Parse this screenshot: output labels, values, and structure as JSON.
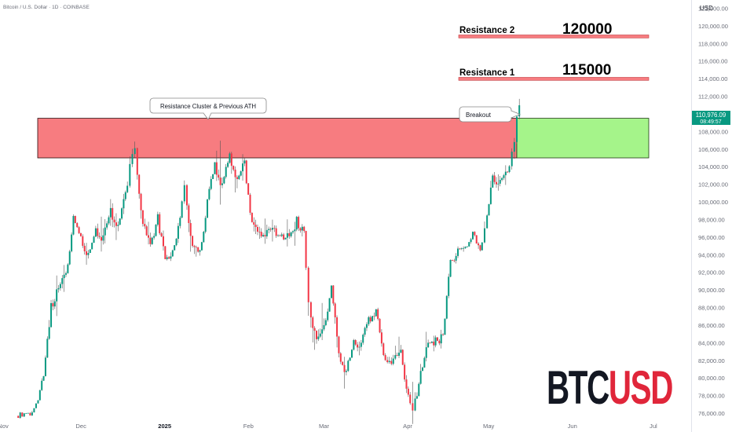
{
  "header": {
    "symbol_line": "Bitcoin / U.S. Dollar · 1D · COINBASE"
  },
  "axis": {
    "currency": "USD"
  },
  "watermark": {
    "part1": "BTC",
    "part2": "USD",
    "color1": "#131722",
    "color2": "#e0263a"
  },
  "price_tag": {
    "price": "110,976.09",
    "countdown": "08:49:57",
    "color": "#089981"
  },
  "annotations": {
    "cluster_label": "Resistance Cluster & Previous ATH",
    "breakout_label": "Breakout",
    "resistance1_label": "Resistance 1",
    "resistance1_value": "115000",
    "resistance2_label": "Resistance 2",
    "resistance2_value": "120000"
  },
  "colors": {
    "up": "#089981",
    "down": "#f23645",
    "zone_red": "#f77c80",
    "zone_green": "#a5f48a",
    "line_red": "#f77c80"
  },
  "chart_data": {
    "type": "candlestick",
    "y_ticks": [
      "76,000.00",
      "78,000.00",
      "80,000.00",
      "82,000.00",
      "84,000.00",
      "86,000.00",
      "88,000.00",
      "90,000.00",
      "92,000.00",
      "94,000.00",
      "96,000.00",
      "98,000.00",
      "100,000.00",
      "102,000.00",
      "104,000.00",
      "106,000.00",
      "108,000.00",
      "110,000.00",
      "112,000.00",
      "114,000.00",
      "116,000.00",
      "118,000.00",
      "120,000.00",
      "122,000.00"
    ],
    "y_tick_values": [
      76000,
      78000,
      80000,
      82000,
      84000,
      86000,
      88000,
      90000,
      92000,
      94000,
      96000,
      98000,
      100000,
      102000,
      104000,
      106000,
      108000,
      110000,
      112000,
      114000,
      116000,
      118000,
      120000,
      122000
    ],
    "ylim": [
      75000,
      124000
    ],
    "x_ticks": [
      "Nov",
      "Dec",
      "2025",
      "Feb",
      "Mar",
      "Apr",
      "May",
      "Jun",
      "Jul"
    ],
    "x_tick_dates": [
      "2024-11-01",
      "2024-12-01",
      "2025-01-01",
      "2025-02-01",
      "2025-03-01",
      "2025-04-01",
      "2025-05-01",
      "2025-06-01",
      "2025-07-01"
    ],
    "xlim": [
      "2024-11-01",
      "2025-07-15"
    ],
    "zones": [
      {
        "name": "resistance cluster",
        "from": "2024-11-01",
        "to": "2025-05-22",
        "low": 105000,
        "high": 109500,
        "color": "#f77c80"
      },
      {
        "name": "target zone",
        "from": "2025-05-22",
        "to": "2025-07-15",
        "low": 105000,
        "high": 109500,
        "color": "#a5f48a"
      }
    ],
    "levels": [
      {
        "name": "Resistance 1",
        "price": 115000
      },
      {
        "name": "Resistance 2",
        "price": 120000
      }
    ],
    "candles": [
      {
        "t": "2024-11-01",
        "o": 75700,
        "h": 76200,
        "l": 75400,
        "c": 76000
      },
      {
        "t": "2024-11-05",
        "o": 76000,
        "h": 77500,
        "l": 75900,
        "c": 77100
      },
      {
        "t": "2024-11-09",
        "o": 77100,
        "h": 80500,
        "l": 77000,
        "c": 80200
      },
      {
        "t": "2024-11-12",
        "o": 80200,
        "h": 89900,
        "l": 80000,
        "c": 88500
      },
      {
        "t": "2024-11-15",
        "o": 88500,
        "h": 91800,
        "l": 86800,
        "c": 90200
      },
      {
        "t": "2024-11-18",
        "o": 90200,
        "h": 93100,
        "l": 88500,
        "c": 91900
      },
      {
        "t": "2024-11-21",
        "o": 91900,
        "h": 99200,
        "l": 91500,
        "c": 98400
      },
      {
        "t": "2024-11-24",
        "o": 98400,
        "h": 99500,
        "l": 95300,
        "c": 96100
      },
      {
        "t": "2024-11-27",
        "o": 96100,
        "h": 97500,
        "l": 92600,
        "c": 94200
      },
      {
        "t": "2024-11-30",
        "o": 94200,
        "h": 98600,
        "l": 94000,
        "c": 97000
      },
      {
        "t": "2024-12-03",
        "o": 97000,
        "h": 99800,
        "l": 94700,
        "c": 96200
      },
      {
        "t": "2024-12-06",
        "o": 96200,
        "h": 103900,
        "l": 91800,
        "c": 99300
      },
      {
        "t": "2024-12-09",
        "o": 99300,
        "h": 101300,
        "l": 94300,
        "c": 97400
      },
      {
        "t": "2024-12-12",
        "o": 97400,
        "h": 101900,
        "l": 96500,
        "c": 101100
      },
      {
        "t": "2024-12-15",
        "o": 101100,
        "h": 106000,
        "l": 100700,
        "c": 104300
      },
      {
        "t": "2024-12-17",
        "o": 104300,
        "h": 108300,
        "l": 103000,
        "c": 106100
      },
      {
        "t": "2024-12-19",
        "o": 106100,
        "h": 106300,
        "l": 95600,
        "c": 97500
      },
      {
        "t": "2024-12-22",
        "o": 97500,
        "h": 99500,
        "l": 94200,
        "c": 95200
      },
      {
        "t": "2024-12-25",
        "o": 95200,
        "h": 99900,
        "l": 94300,
        "c": 98600
      },
      {
        "t": "2024-12-28",
        "o": 98600,
        "h": 99400,
        "l": 92900,
        "c": 93500
      },
      {
        "t": "2024-12-31",
        "o": 93500,
        "h": 96500,
        "l": 92300,
        "c": 94500
      },
      {
        "t": "2025-01-03",
        "o": 94500,
        "h": 98900,
        "l": 93500,
        "c": 98200
      },
      {
        "t": "2025-01-06",
        "o": 98200,
        "h": 102500,
        "l": 97900,
        "c": 101900
      },
      {
        "t": "2025-01-08",
        "o": 101900,
        "h": 102700,
        "l": 91300,
        "c": 95000
      },
      {
        "t": "2025-01-11",
        "o": 95000,
        "h": 95800,
        "l": 89200,
        "c": 94500
      },
      {
        "t": "2025-01-14",
        "o": 94500,
        "h": 100700,
        "l": 94200,
        "c": 100300
      },
      {
        "t": "2025-01-17",
        "o": 100300,
        "h": 105800,
        "l": 99700,
        "c": 104500
      },
      {
        "t": "2025-01-20",
        "o": 104500,
        "h": 109600,
        "l": 99400,
        "c": 102100
      },
      {
        "t": "2025-01-23",
        "o": 102100,
        "h": 106800,
        "l": 101300,
        "c": 105500
      },
      {
        "t": "2025-01-26",
        "o": 105500,
        "h": 106500,
        "l": 97800,
        "c": 102600
      },
      {
        "t": "2025-01-29",
        "o": 102600,
        "h": 106000,
        "l": 101300,
        "c": 104700
      },
      {
        "t": "2025-02-01",
        "o": 104700,
        "h": 105000,
        "l": 97300,
        "c": 97700
      },
      {
        "t": "2025-02-04",
        "o": 97700,
        "h": 101500,
        "l": 91200,
        "c": 96600
      },
      {
        "t": "2025-02-07",
        "o": 96600,
        "h": 99900,
        "l": 95200,
        "c": 96800
      },
      {
        "t": "2025-02-10",
        "o": 96800,
        "h": 98400,
        "l": 94800,
        "c": 97000
      },
      {
        "t": "2025-02-13",
        "o": 97000,
        "h": 98600,
        "l": 95200,
        "c": 96300
      },
      {
        "t": "2025-02-16",
        "o": 96300,
        "h": 97900,
        "l": 95100,
        "c": 96100
      },
      {
        "t": "2025-02-19",
        "o": 96100,
        "h": 99200,
        "l": 94400,
        "c": 98300
      },
      {
        "t": "2025-02-22",
        "o": 98300,
        "h": 98800,
        "l": 95600,
        "c": 96700
      },
      {
        "t": "2025-02-25",
        "o": 96700,
        "h": 97000,
        "l": 85600,
        "c": 88600
      },
      {
        "t": "2025-02-27",
        "o": 88600,
        "h": 89200,
        "l": 78200,
        "c": 84400
      },
      {
        "t": "2025-03-02",
        "o": 84400,
        "h": 94100,
        "l": 82400,
        "c": 86000
      },
      {
        "t": "2025-03-05",
        "o": 86000,
        "h": 92200,
        "l": 85100,
        "c": 90500
      },
      {
        "t": "2025-03-08",
        "o": 90500,
        "h": 91000,
        "l": 80100,
        "c": 82800
      },
      {
        "t": "2025-03-11",
        "o": 82800,
        "h": 84500,
        "l": 77400,
        "c": 80800
      },
      {
        "t": "2025-03-14",
        "o": 80800,
        "h": 84800,
        "l": 80400,
        "c": 84300
      },
      {
        "t": "2025-03-17",
        "o": 84300,
        "h": 85800,
        "l": 81800,
        "c": 84000
      },
      {
        "t": "2025-03-20",
        "o": 84000,
        "h": 87500,
        "l": 83100,
        "c": 86900
      },
      {
        "t": "2025-03-23",
        "o": 86900,
        "h": 88700,
        "l": 85900,
        "c": 87800
      },
      {
        "t": "2025-03-26",
        "o": 87800,
        "h": 88500,
        "l": 81900,
        "c": 82600
      },
      {
        "t": "2025-03-29",
        "o": 82600,
        "h": 84800,
        "l": 81300,
        "c": 82200
      },
      {
        "t": "2025-04-02",
        "o": 82200,
        "h": 88000,
        "l": 81500,
        "c": 83200
      },
      {
        "t": "2025-04-05",
        "o": 83200,
        "h": 84200,
        "l": 77100,
        "c": 78100
      },
      {
        "t": "2025-04-08",
        "o": 78100,
        "h": 80800,
        "l": 74600,
        "c": 76300
      },
      {
        "t": "2025-04-10",
        "o": 76300,
        "h": 83500,
        "l": 76000,
        "c": 80800
      },
      {
        "t": "2025-04-13",
        "o": 80800,
        "h": 85800,
        "l": 80400,
        "c": 84000
      },
      {
        "t": "2025-04-16",
        "o": 84000,
        "h": 85500,
        "l": 83100,
        "c": 84600
      },
      {
        "t": "2025-04-19",
        "o": 84600,
        "h": 85600,
        "l": 83800,
        "c": 84900
      },
      {
        "t": "2025-04-22",
        "o": 84900,
        "h": 93800,
        "l": 84600,
        "c": 93400
      },
      {
        "t": "2025-04-25",
        "o": 93400,
        "h": 95600,
        "l": 92500,
        "c": 94700
      },
      {
        "t": "2025-04-28",
        "o": 94700,
        "h": 95500,
        "l": 93500,
        "c": 94900
      },
      {
        "t": "2025-05-01",
        "o": 94900,
        "h": 97400,
        "l": 93900,
        "c": 96600
      },
      {
        "t": "2025-05-04",
        "o": 96600,
        "h": 96900,
        "l": 93800,
        "c": 94500
      },
      {
        "t": "2025-05-07",
        "o": 94500,
        "h": 97800,
        "l": 94400,
        "c": 97000
      },
      {
        "t": "2025-05-09",
        "o": 97000,
        "h": 104100,
        "l": 96900,
        "c": 103000
      },
      {
        "t": "2025-05-12",
        "o": 103000,
        "h": 105500,
        "l": 100800,
        "c": 102500
      },
      {
        "t": "2025-05-15",
        "o": 102500,
        "h": 104200,
        "l": 101300,
        "c": 103400
      },
      {
        "t": "2025-05-18",
        "o": 103400,
        "h": 107000,
        "l": 102100,
        "c": 105700
      },
      {
        "t": "2025-05-20",
        "o": 105700,
        "h": 107600,
        "l": 104300,
        "c": 106800
      },
      {
        "t": "2025-05-21",
        "o": 106800,
        "h": 110600,
        "l": 106400,
        "c": 109700
      },
      {
        "t": "2025-05-22",
        "o": 109700,
        "h": 111900,
        "l": 109300,
        "c": 110976
      }
    ]
  }
}
